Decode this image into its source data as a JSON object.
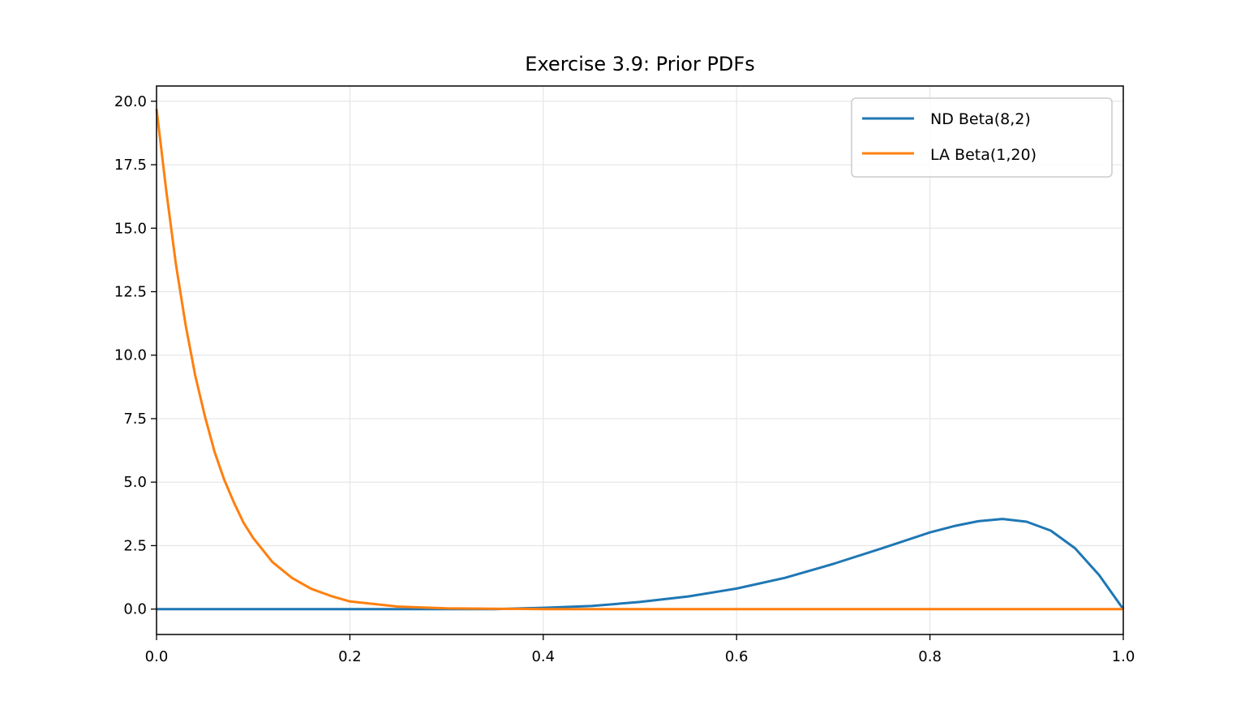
{
  "chart_data": {
    "type": "line",
    "title": "Exercise 3.9: Prior PDFs",
    "xlabel": "",
    "ylabel": "",
    "xlim": [
      0.0,
      1.0
    ],
    "ylim": [
      -1.0,
      20.6
    ],
    "xticks": [
      0.0,
      0.2,
      0.4,
      0.6,
      0.8,
      1.0
    ],
    "xtick_labels": [
      "0.0",
      "0.2",
      "0.4",
      "0.6",
      "0.8",
      "1.0"
    ],
    "yticks": [
      0.0,
      2.5,
      5.0,
      7.5,
      10.0,
      12.5,
      15.0,
      17.5,
      20.0
    ],
    "ytick_labels": [
      "0.0",
      "2.5",
      "5.0",
      "7.5",
      "10.0",
      "12.5",
      "15.0",
      "17.5",
      "20.0"
    ],
    "grid": true,
    "legend_position": "top-right",
    "series": [
      {
        "name": "ND Beta(8,2)",
        "color": "#1f77b4",
        "x": [
          0.0,
          0.05,
          0.1,
          0.15,
          0.2,
          0.25,
          0.3,
          0.35,
          0.4,
          0.45,
          0.5,
          0.55,
          0.6,
          0.65,
          0.7,
          0.75,
          0.8,
          0.825,
          0.85,
          0.875,
          0.9,
          0.925,
          0.95,
          0.975,
          1.0
        ],
        "y": [
          0.0,
          0.0,
          0.0,
          0.0,
          0.0,
          0.0,
          0.0,
          0.0,
          0.05,
          0.12,
          0.28,
          0.5,
          0.81,
          1.23,
          1.78,
          2.39,
          3.02,
          3.27,
          3.46,
          3.55,
          3.44,
          3.09,
          2.4,
          1.34,
          0.0
        ]
      },
      {
        "name": "LA Beta(1,20)",
        "color": "#ff7f0e",
        "x": [
          0.0,
          0.01,
          0.02,
          0.03,
          0.04,
          0.05,
          0.06,
          0.07,
          0.08,
          0.09,
          0.1,
          0.12,
          0.14,
          0.16,
          0.18,
          0.2,
          0.25,
          0.3,
          0.4,
          0.5,
          0.6,
          0.7,
          0.8,
          0.9,
          1.0
        ],
        "y": [
          19.7,
          16.5,
          13.6,
          11.2,
          9.2,
          7.6,
          6.2,
          5.1,
          4.2,
          3.4,
          2.8,
          1.85,
          1.23,
          0.8,
          0.52,
          0.3,
          0.1,
          0.03,
          0.0,
          0.0,
          0.0,
          0.0,
          0.0,
          0.0,
          0.0
        ]
      }
    ]
  }
}
